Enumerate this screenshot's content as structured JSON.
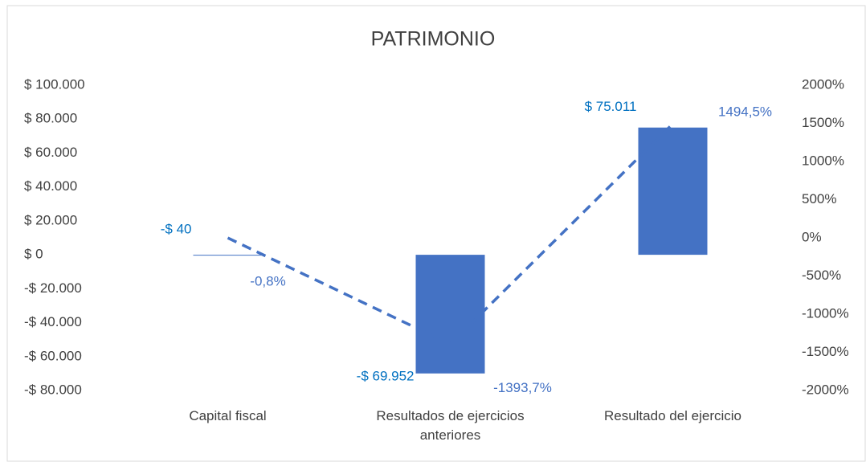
{
  "chart_data": {
    "type": "bar-line",
    "title": "PATRIMONIO",
    "categories": [
      "Capital fiscal",
      "Resultados de ejercicios anteriores",
      "Resultado del ejercicio"
    ],
    "series": [
      {
        "name": "Valor",
        "type": "bar",
        "color": "#4472c4",
        "label_color": "#0070c0",
        "values": [
          -40,
          -69952,
          75011
        ],
        "value_labels": [
          "-$ 40",
          "-$ 69.952",
          "$ 75.011"
        ]
      },
      {
        "name": "Porcentaje",
        "type": "line",
        "axis": "y2",
        "color": "#4472c4",
        "label_color": "#4472c4",
        "dashed": true,
        "values": [
          -0.8,
          -1393.7,
          1494.5
        ],
        "value_labels": [
          "-0,8%",
          "-1393,7%",
          "1494,5%"
        ]
      }
    ],
    "ylim": [
      -80000,
      100000
    ],
    "yticks": [
      {
        "value": -80000,
        "label": "-$ 80.000"
      },
      {
        "value": -60000,
        "label": "-$ 60.000"
      },
      {
        "value": -40000,
        "label": "-$ 40.000"
      },
      {
        "value": -20000,
        "label": "-$ 20.000"
      },
      {
        "value": 0,
        "label": "$ 0"
      },
      {
        "value": 20000,
        "label": "$ 20.000"
      },
      {
        "value": 40000,
        "label": "$ 40.000"
      },
      {
        "value": 60000,
        "label": "$ 60.000"
      },
      {
        "value": 80000,
        "label": "$ 80.000"
      },
      {
        "value": 100000,
        "label": "$ 100.000"
      }
    ],
    "y2lim": [
      -2000,
      2000
    ],
    "y2ticks": [
      {
        "value": -2000,
        "label": "-2000%"
      },
      {
        "value": -1500,
        "label": "-1500%"
      },
      {
        "value": -1000,
        "label": "-1000%"
      },
      {
        "value": -500,
        "label": "-500%"
      },
      {
        "value": 0,
        "label": "0%"
      },
      {
        "value": 500,
        "label": "500%"
      },
      {
        "value": 1000,
        "label": "1000%"
      },
      {
        "value": 1500,
        "label": "1500%"
      },
      {
        "value": 2000,
        "label": "2000%"
      }
    ],
    "grid": false
  }
}
